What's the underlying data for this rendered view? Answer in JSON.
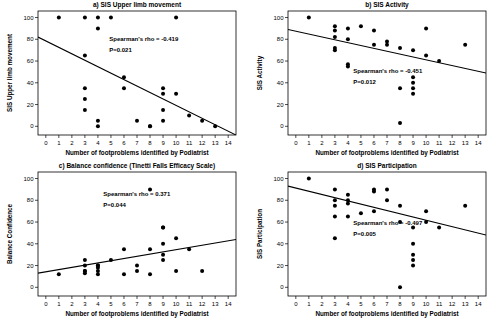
{
  "chart_data": [
    {
      "type": "scatter",
      "title": "a) SIS Upper limb movement",
      "x_label": "Number of footproblems identified by Podiatrist",
      "y_label": "SIS Upper limb movement",
      "annotations": [
        "Spearman's rho = -0.419",
        "P=0.021"
      ],
      "xlim": [
        -0.6,
        14.6
      ],
      "ylim": [
        -8,
        106
      ],
      "xticks": [
        0,
        1,
        2,
        3,
        4,
        5,
        6,
        7,
        8,
        9,
        10,
        11,
        12,
        13,
        14
      ],
      "yticks": [
        0,
        20,
        40,
        60,
        80,
        100
      ],
      "series": [
        {
          "type": "scatter",
          "marker": "circle",
          "color": "#000000",
          "x": [
            1,
            3,
            3,
            3,
            3,
            3,
            4,
            4,
            4,
            4,
            5,
            6,
            6,
            7,
            8,
            8,
            9,
            9,
            9,
            9,
            10,
            10,
            11,
            12,
            13
          ],
          "values": [
            100,
            100,
            65,
            35,
            25,
            15,
            100,
            90,
            5,
            0,
            100,
            45,
            35,
            5,
            0,
            0,
            35,
            30,
            15,
            5,
            100,
            30,
            10,
            5,
            0
          ]
        },
        {
          "type": "line",
          "line_style": "solid",
          "color": "#000000",
          "x": [
            -0.6,
            14.6
          ],
          "values": [
            82,
            -8
          ]
        }
      ]
    },
    {
      "type": "scatter",
      "title": "b) SIS Activity",
      "x_label": "Number of footproblems identified by Podiatrist",
      "y_label": "SIS Activity",
      "annotations": [
        "Spearman's rho = -0.451",
        "P=0.012"
      ],
      "xlim": [
        -0.6,
        14.6
      ],
      "ylim": [
        -8,
        106
      ],
      "xticks": [
        0,
        1,
        2,
        3,
        4,
        5,
        6,
        7,
        8,
        9,
        10,
        11,
        12,
        13,
        14
      ],
      "yticks": [
        0,
        20,
        40,
        60,
        80,
        100
      ],
      "series": [
        {
          "type": "scatter",
          "marker": "circle",
          "color": "#000000",
          "x": [
            1,
            3,
            3,
            3,
            3,
            3,
            4,
            4,
            4,
            4,
            5,
            6,
            6,
            7,
            7,
            8,
            8,
            8,
            9,
            9,
            9,
            9,
            9,
            10,
            10,
            11,
            13
          ],
          "values": [
            100,
            92,
            88,
            82,
            72,
            70,
            90,
            80,
            57,
            55,
            92,
            88,
            75,
            78,
            75,
            72,
            35,
            3,
            70,
            45,
            40,
            35,
            30,
            90,
            65,
            60,
            75
          ]
        },
        {
          "type": "line",
          "line_style": "solid",
          "color": "#000000",
          "x": [
            -0.6,
            14.6
          ],
          "values": [
            89,
            49
          ]
        }
      ]
    },
    {
      "type": "scatter",
      "title": "c) Balance confidence (Tinetti Falls Efficacy Scale)",
      "x_label": "Number of footproblems identified by Podiatrist",
      "y_label": "Balance Confidence",
      "annotations": [
        "Spearman's rho = 0.371",
        "P=0.044"
      ],
      "xlim": [
        -0.6,
        14.6
      ],
      "ylim": [
        -8,
        106
      ],
      "xticks": [
        0,
        1,
        2,
        3,
        4,
        5,
        6,
        7,
        8,
        9,
        10,
        11,
        12,
        13,
        14
      ],
      "yticks": [
        0,
        20,
        40,
        60,
        80,
        100
      ],
      "series": [
        {
          "type": "scatter",
          "marker": "circle",
          "color": "#000000",
          "x": [
            1,
            3,
            3,
            3,
            3,
            3,
            4,
            4,
            4,
            4,
            4,
            5,
            6,
            6,
            7,
            7,
            8,
            8,
            8,
            9,
            9,
            9,
            9,
            9,
            10,
            10,
            11,
            12
          ],
          "values": [
            12,
            25,
            20,
            15,
            15,
            13,
            20,
            20,
            18,
            15,
            12,
            25,
            12,
            35,
            15,
            20,
            90,
            35,
            12,
            55,
            55,
            40,
            30,
            25,
            15,
            45,
            35,
            15
          ]
        },
        {
          "type": "line",
          "line_style": "solid",
          "color": "#000000",
          "x": [
            -0.6,
            14.6
          ],
          "values": [
            13,
            44
          ]
        }
      ]
    },
    {
      "type": "scatter",
      "title": "d) SIS Participation",
      "x_label": "Number of footproblems identified by Podiatrist",
      "y_label": "SIS Participation",
      "annotations": [
        "Spearman's rho = -0.497",
        "P=0.005"
      ],
      "xlim": [
        -0.6,
        14.6
      ],
      "ylim": [
        -8,
        106
      ],
      "xticks": [
        0,
        1,
        2,
        3,
        4,
        5,
        6,
        7,
        8,
        9,
        10,
        11,
        12,
        13,
        14
      ],
      "yticks": [
        0,
        20,
        40,
        60,
        80,
        100
      ],
      "series": [
        {
          "type": "scatter",
          "marker": "circle",
          "color": "#000000",
          "x": [
            1,
            3,
            3,
            3,
            3,
            3,
            4,
            4,
            4,
            4,
            5,
            6,
            6,
            6,
            7,
            7,
            8,
            8,
            8,
            9,
            9,
            9,
            9,
            9,
            10,
            10,
            11,
            13
          ],
          "values": [
            100,
            90,
            80,
            75,
            65,
            45,
            85,
            80,
            77,
            65,
            68,
            90,
            88,
            70,
            90,
            80,
            75,
            60,
            0,
            55,
            40,
            30,
            25,
            20,
            70,
            60,
            55,
            75
          ]
        },
        {
          "type": "line",
          "line_style": "solid",
          "color": "#000000",
          "x": [
            -0.6,
            14.6
          ],
          "values": [
            93,
            48
          ]
        }
      ]
    }
  ]
}
